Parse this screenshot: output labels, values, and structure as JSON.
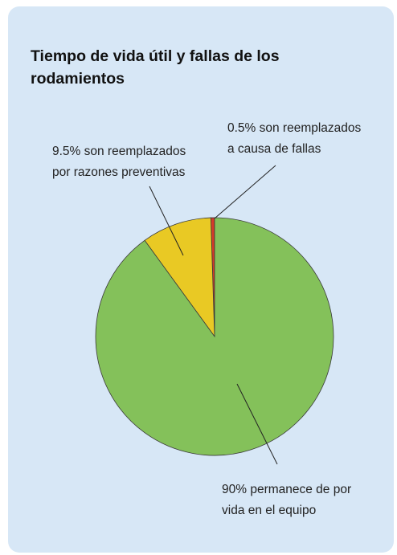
{
  "chart_data": {
    "type": "pie",
    "title": "Tiempo de vida útil y fallas de los rodamientos",
    "values": [
      0.5,
      9.5,
      90
    ],
    "labels": [
      [
        "0.5% son reemplazados",
        "a causa de fallas"
      ],
      [
        "9.5% son reemplazados",
        "por razones preventivas"
      ],
      [
        "90% permanece de por",
        "vida en el equipo"
      ]
    ],
    "colors": [
      "#d63b2a",
      "#e9c924",
      "#84c15a"
    ],
    "start": "top",
    "direction": "counterclockwise"
  }
}
